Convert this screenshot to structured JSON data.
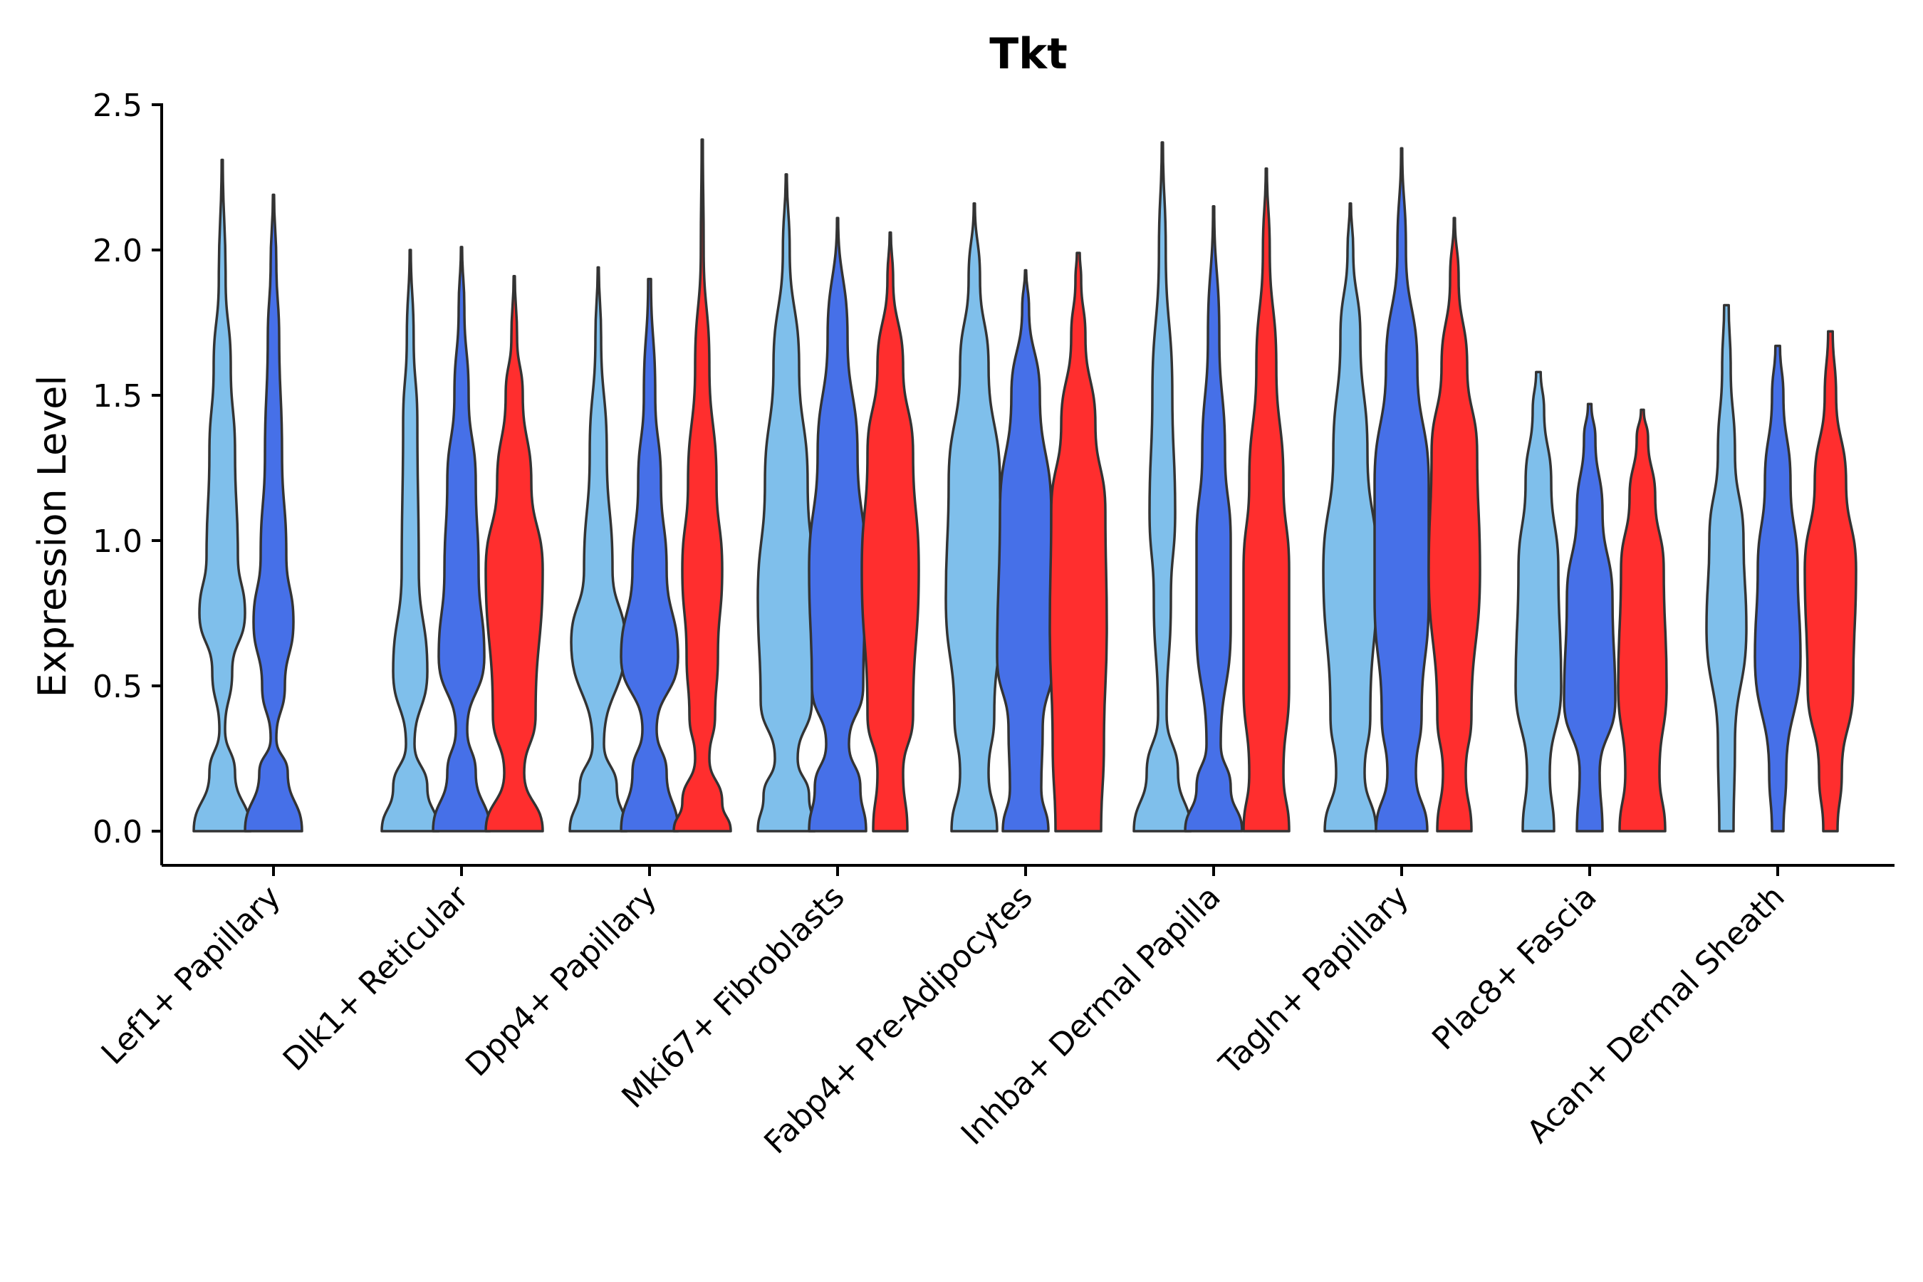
{
  "chart_data": {
    "type": "violin",
    "title": "Tkt",
    "xlabel": "",
    "ylabel": "Expression Level",
    "ylim": [
      -0.12,
      2.55
    ],
    "yticks": [
      0.0,
      0.5,
      1.0,
      1.5,
      2.0,
      2.5
    ],
    "ytick_labels": [
      "0.0",
      "0.5",
      "1.0",
      "1.5",
      "2.0",
      "2.5"
    ],
    "grid": false,
    "legend": "none",
    "series_colors": [
      "#7fbfeb",
      "#4670e8",
      "#ff2e2e"
    ],
    "categories": [
      "Lef1+ Papillary",
      "Dlk1+ Reticular",
      "Dpp4+ Papillary",
      "Mki67+ Fibroblasts",
      "Fabp4+ Pre-Adipocytes",
      "Inhba+ Dermal Papilla",
      "Tagln+ Papillary",
      "Plac8+ Fascia",
      "Acan+ Dermal Sheath"
    ],
    "violins": [
      {
        "category": "Lef1+ Papillary",
        "series": 0,
        "max": 2.31,
        "density": [
          [
            0.0,
            1.0
          ],
          [
            0.2,
            0.45
          ],
          [
            0.35,
            0.1
          ],
          [
            0.55,
            0.35
          ],
          [
            0.75,
            0.8
          ],
          [
            0.95,
            0.55
          ],
          [
            1.3,
            0.45
          ],
          [
            1.6,
            0.3
          ],
          [
            1.9,
            0.12
          ],
          [
            2.31,
            0.02
          ]
        ]
      },
      {
        "category": "Lef1+ Papillary",
        "series": 1,
        "max": 2.19,
        "density": [
          [
            0.0,
            1.0
          ],
          [
            0.2,
            0.5
          ],
          [
            0.32,
            0.1
          ],
          [
            0.5,
            0.4
          ],
          [
            0.72,
            0.7
          ],
          [
            0.95,
            0.45
          ],
          [
            1.3,
            0.3
          ],
          [
            1.7,
            0.2
          ],
          [
            1.95,
            0.1
          ],
          [
            2.19,
            0.02
          ]
        ]
      },
      {
        "category": "Dlk1+ Reticular",
        "series": 0,
        "max": 2.0,
        "density": [
          [
            0.0,
            1.0
          ],
          [
            0.15,
            0.6
          ],
          [
            0.3,
            0.15
          ],
          [
            0.55,
            0.6
          ],
          [
            0.9,
            0.3
          ],
          [
            1.4,
            0.25
          ],
          [
            1.7,
            0.12
          ],
          [
            2.0,
            0.02
          ]
        ]
      },
      {
        "category": "Dlk1+ Reticular",
        "series": 1,
        "max": 2.01,
        "density": [
          [
            0.0,
            1.0
          ],
          [
            0.2,
            0.5
          ],
          [
            0.35,
            0.2
          ],
          [
            0.6,
            0.8
          ],
          [
            0.9,
            0.6
          ],
          [
            1.2,
            0.5
          ],
          [
            1.5,
            0.25
          ],
          [
            1.8,
            0.1
          ],
          [
            2.01,
            0.02
          ]
        ]
      },
      {
        "category": "Dlk1+ Reticular",
        "series": 2,
        "max": 1.91,
        "density": [
          [
            0.0,
            1.0
          ],
          [
            0.2,
            0.35
          ],
          [
            0.4,
            0.75
          ],
          [
            0.9,
            1.0
          ],
          [
            1.2,
            0.6
          ],
          [
            1.5,
            0.3
          ],
          [
            1.7,
            0.1
          ],
          [
            1.91,
            0.02
          ]
        ]
      },
      {
        "category": "Dpp4+ Papillary",
        "series": 0,
        "max": 1.94,
        "density": [
          [
            0.0,
            1.0
          ],
          [
            0.15,
            0.65
          ],
          [
            0.3,
            0.2
          ],
          [
            0.65,
            0.95
          ],
          [
            0.9,
            0.5
          ],
          [
            1.3,
            0.3
          ],
          [
            1.7,
            0.1
          ],
          [
            1.94,
            0.02
          ]
        ]
      },
      {
        "category": "Dpp4+ Papillary",
        "series": 1,
        "max": 1.9,
        "density": [
          [
            0.0,
            1.0
          ],
          [
            0.2,
            0.6
          ],
          [
            0.35,
            0.25
          ],
          [
            0.6,
            1.0
          ],
          [
            0.9,
            0.6
          ],
          [
            1.2,
            0.4
          ],
          [
            1.5,
            0.2
          ],
          [
            1.9,
            0.05
          ]
        ]
      },
      {
        "category": "Dpp4+ Papillary",
        "series": 2,
        "max": 2.38,
        "density": [
          [
            0.0,
            1.0
          ],
          [
            0.1,
            0.7
          ],
          [
            0.25,
            0.25
          ],
          [
            0.4,
            0.45
          ],
          [
            0.6,
            0.55
          ],
          [
            0.9,
            0.7
          ],
          [
            1.2,
            0.5
          ],
          [
            1.6,
            0.25
          ],
          [
            2.0,
            0.05
          ],
          [
            2.38,
            0.02
          ]
        ]
      },
      {
        "category": "Mki67+ Fibroblasts",
        "series": 0,
        "max": 2.26,
        "density": [
          [
            0.0,
            1.0
          ],
          [
            0.12,
            0.8
          ],
          [
            0.25,
            0.4
          ],
          [
            0.45,
            0.9
          ],
          [
            0.8,
            1.0
          ],
          [
            1.2,
            0.75
          ],
          [
            1.6,
            0.45
          ],
          [
            2.0,
            0.12
          ],
          [
            2.26,
            0.02
          ]
        ]
      },
      {
        "category": "Mki67+ Fibroblasts",
        "series": 1,
        "max": 2.11,
        "density": [
          [
            0.0,
            1.0
          ],
          [
            0.15,
            0.8
          ],
          [
            0.3,
            0.4
          ],
          [
            0.5,
            0.9
          ],
          [
            0.9,
            1.0
          ],
          [
            1.3,
            0.7
          ],
          [
            1.7,
            0.35
          ],
          [
            2.11,
            0.02
          ]
        ]
      },
      {
        "category": "Mki67+ Fibroblasts",
        "series": 2,
        "max": 2.06,
        "density": [
          [
            0.0,
            0.6
          ],
          [
            0.2,
            0.45
          ],
          [
            0.4,
            0.8
          ],
          [
            0.9,
            1.0
          ],
          [
            1.3,
            0.8
          ],
          [
            1.6,
            0.45
          ],
          [
            1.9,
            0.1
          ],
          [
            2.06,
            0.02
          ]
        ]
      },
      {
        "category": "Fabp4+ Pre-Adipocytes",
        "series": 0,
        "max": 2.16,
        "density": [
          [
            0.0,
            0.8
          ],
          [
            0.2,
            0.5
          ],
          [
            0.4,
            0.7
          ],
          [
            0.8,
            1.0
          ],
          [
            1.2,
            0.9
          ],
          [
            1.6,
            0.5
          ],
          [
            1.9,
            0.2
          ],
          [
            2.16,
            0.02
          ]
        ]
      },
      {
        "category": "Fabp4+ Pre-Adipocytes",
        "series": 1,
        "max": 1.93,
        "density": [
          [
            0.0,
            0.8
          ],
          [
            0.15,
            0.55
          ],
          [
            0.35,
            0.6
          ],
          [
            0.6,
            1.0
          ],
          [
            1.1,
            0.9
          ],
          [
            1.5,
            0.5
          ],
          [
            1.8,
            0.12
          ],
          [
            1.93,
            0.02
          ]
        ]
      },
      {
        "category": "Fabp4+ Pre-Adipocytes",
        "series": 2,
        "max": 1.99,
        "density": [
          [
            0.0,
            0.8
          ],
          [
            0.3,
            0.9
          ],
          [
            0.7,
            1.0
          ],
          [
            1.1,
            0.95
          ],
          [
            1.4,
            0.6
          ],
          [
            1.7,
            0.25
          ],
          [
            1.9,
            0.1
          ],
          [
            1.99,
            0.05
          ]
        ]
      },
      {
        "category": "Inhba+ Dermal Papilla",
        "series": 0,
        "max": 2.37,
        "density": [
          [
            0.0,
            1.0
          ],
          [
            0.2,
            0.55
          ],
          [
            0.4,
            0.15
          ],
          [
            0.8,
            0.3
          ],
          [
            1.1,
            0.45
          ],
          [
            1.5,
            0.35
          ],
          [
            2.0,
            0.12
          ],
          [
            2.37,
            0.02
          ]
        ]
      },
      {
        "category": "Inhba+ Dermal Papilla",
        "series": 1,
        "max": 2.15,
        "density": [
          [
            0.0,
            1.0
          ],
          [
            0.15,
            0.6
          ],
          [
            0.3,
            0.25
          ],
          [
            0.7,
            0.6
          ],
          [
            1.0,
            0.6
          ],
          [
            1.3,
            0.4
          ],
          [
            1.7,
            0.2
          ],
          [
            2.15,
            0.02
          ]
        ]
      },
      {
        "category": "Inhba+ Dermal Papilla",
        "series": 2,
        "max": 2.28,
        "density": [
          [
            0.0,
            0.8
          ],
          [
            0.2,
            0.6
          ],
          [
            0.5,
            0.8
          ],
          [
            0.9,
            0.8
          ],
          [
            1.2,
            0.6
          ],
          [
            1.6,
            0.35
          ],
          [
            2.0,
            0.12
          ],
          [
            2.28,
            0.02
          ]
        ]
      },
      {
        "category": "Tagln+ Papillary",
        "series": 0,
        "max": 2.16,
        "density": [
          [
            0.0,
            0.9
          ],
          [
            0.2,
            0.5
          ],
          [
            0.4,
            0.7
          ],
          [
            0.9,
            0.95
          ],
          [
            1.3,
            0.6
          ],
          [
            1.7,
            0.35
          ],
          [
            2.0,
            0.1
          ],
          [
            2.16,
            0.02
          ]
        ]
      },
      {
        "category": "Tagln+ Papillary",
        "series": 1,
        "max": 2.35,
        "density": [
          [
            0.0,
            0.9
          ],
          [
            0.2,
            0.5
          ],
          [
            0.4,
            0.7
          ],
          [
            0.8,
            0.95
          ],
          [
            1.2,
            0.95
          ],
          [
            1.6,
            0.55
          ],
          [
            2.0,
            0.15
          ],
          [
            2.35,
            0.02
          ]
        ]
      },
      {
        "category": "Tagln+ Papillary",
        "series": 2,
        "max": 2.11,
        "density": [
          [
            0.0,
            0.6
          ],
          [
            0.2,
            0.4
          ],
          [
            0.4,
            0.6
          ],
          [
            0.9,
            0.9
          ],
          [
            1.3,
            0.8
          ],
          [
            1.6,
            0.45
          ],
          [
            1.9,
            0.15
          ],
          [
            2.11,
            0.02
          ]
        ]
      },
      {
        "category": "Plac8+ Fascia",
        "series": 0,
        "max": 1.58,
        "density": [
          [
            0.0,
            0.55
          ],
          [
            0.2,
            0.4
          ],
          [
            0.5,
            0.8
          ],
          [
            0.9,
            0.7
          ],
          [
            1.2,
            0.45
          ],
          [
            1.45,
            0.2
          ],
          [
            1.58,
            0.08
          ]
        ]
      },
      {
        "category": "Plac8+ Fascia",
        "series": 1,
        "max": 1.47,
        "density": [
          [
            0.0,
            0.45
          ],
          [
            0.2,
            0.35
          ],
          [
            0.45,
            0.9
          ],
          [
            0.8,
            0.8
          ],
          [
            1.1,
            0.45
          ],
          [
            1.35,
            0.2
          ],
          [
            1.47,
            0.06
          ]
        ]
      },
      {
        "category": "Plac8+ Fascia",
        "series": 2,
        "max": 1.45,
        "density": [
          [
            0.0,
            0.8
          ],
          [
            0.2,
            0.6
          ],
          [
            0.5,
            0.85
          ],
          [
            0.9,
            0.75
          ],
          [
            1.15,
            0.45
          ],
          [
            1.35,
            0.2
          ],
          [
            1.45,
            0.05
          ]
        ]
      },
      {
        "category": "Acan+ Dermal Sheath",
        "series": 0,
        "max": 1.81,
        "density": [
          [
            0.0,
            0.25
          ],
          [
            0.3,
            0.3
          ],
          [
            0.7,
            0.7
          ],
          [
            1.0,
            0.6
          ],
          [
            1.3,
            0.3
          ],
          [
            1.6,
            0.15
          ],
          [
            1.81,
            0.08
          ]
        ]
      },
      {
        "category": "Acan+ Dermal Sheath",
        "series": 1,
        "max": 1.67,
        "density": [
          [
            0.0,
            0.2
          ],
          [
            0.2,
            0.3
          ],
          [
            0.6,
            0.8
          ],
          [
            0.9,
            0.7
          ],
          [
            1.2,
            0.45
          ],
          [
            1.5,
            0.2
          ],
          [
            1.67,
            0.08
          ]
        ]
      },
      {
        "category": "Acan+ Dermal Sheath",
        "series": 2,
        "max": 1.72,
        "density": [
          [
            0.0,
            0.25
          ],
          [
            0.2,
            0.4
          ],
          [
            0.5,
            0.8
          ],
          [
            0.9,
            0.9
          ],
          [
            1.2,
            0.55
          ],
          [
            1.5,
            0.2
          ],
          [
            1.72,
            0.08
          ]
        ]
      }
    ]
  }
}
